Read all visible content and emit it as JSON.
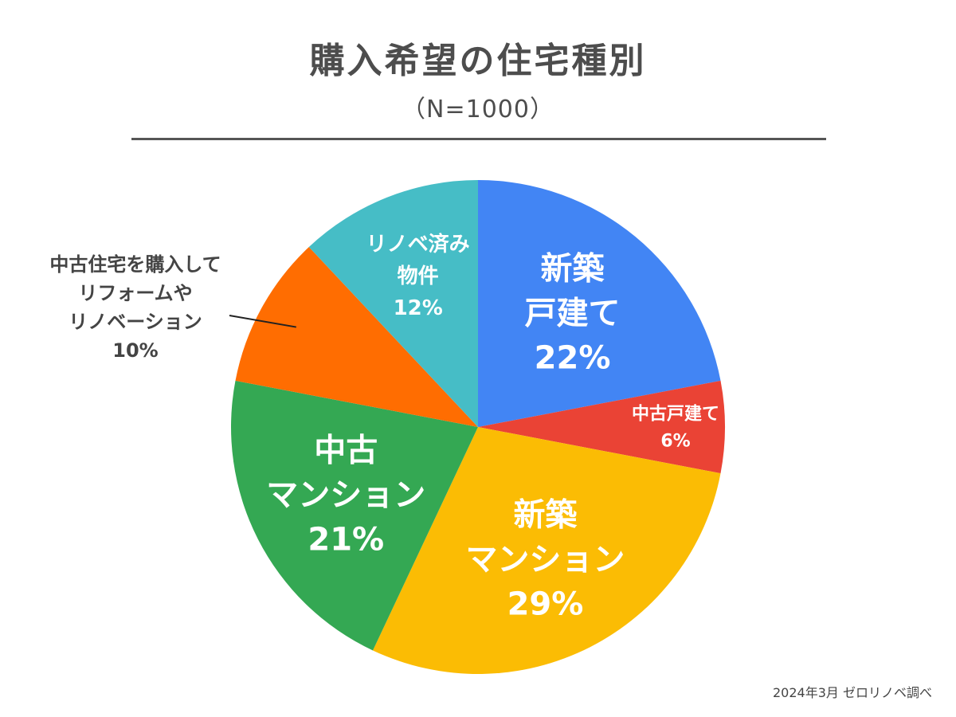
{
  "chart_data": {
    "type": "pie",
    "title": "購入希望の住宅種別",
    "subtitle": "（N=1000）",
    "source": "2024年3月 ゼロリノベ調べ",
    "slices": [
      {
        "name": "新築戸建て",
        "label_lines": [
          "新築",
          "戸建て"
        ],
        "value": 22,
        "value_label": "22%",
        "color": "#4285F4",
        "label_style": "large"
      },
      {
        "name": "中古戸建て",
        "label_lines": [
          "中古戸建て"
        ],
        "value": 6,
        "value_label": "6%",
        "color": "#EA4335",
        "label_style": "small"
      },
      {
        "name": "新築マンション",
        "label_lines": [
          "新築",
          "マンション"
        ],
        "value": 29,
        "value_label": "29%",
        "color": "#FBBC04",
        "label_style": "large"
      },
      {
        "name": "中古マンション",
        "label_lines": [
          "中古",
          "マンション"
        ],
        "value": 21,
        "value_label": "21%",
        "color": "#34A853",
        "label_style": "large"
      },
      {
        "name": "中古住宅を購入してリフォームやリノベーション",
        "label_lines": [
          "中古住宅を購入して",
          "リフォームや",
          "リノベーション"
        ],
        "value": 10,
        "value_label": "10%",
        "color": "#FF6D01",
        "label_style": "outside"
      },
      {
        "name": "リノベ済み物件",
        "label_lines": [
          "リノベ済み",
          "物件"
        ],
        "value": 12,
        "value_label": "12%",
        "color": "#46BDC6",
        "label_style": "medium"
      }
    ]
  }
}
